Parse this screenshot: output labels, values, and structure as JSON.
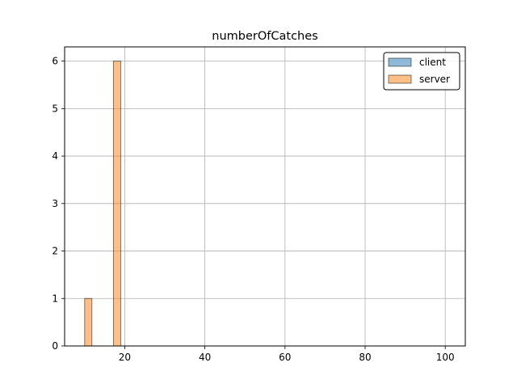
{
  "chart_data": {
    "type": "bar",
    "title": "numberOfCatches",
    "xlabel": "",
    "ylabel": "",
    "xlim": [
      5,
      105
    ],
    "ylim": [
      0,
      6.3
    ],
    "xticks": [
      20,
      40,
      60,
      80,
      100
    ],
    "yticks": [
      0,
      1,
      2,
      3,
      4,
      5,
      6
    ],
    "grid": true,
    "legend_position": "top-right",
    "bin_width": 1.8,
    "series": [
      {
        "name": "client",
        "color": "#1f77b4",
        "bins": []
      },
      {
        "name": "server",
        "color": "#ff7f0e",
        "bins": [
          {
            "x_start": 10.0,
            "x_end": 11.8,
            "count": 1
          },
          {
            "x_start": 17.2,
            "x_end": 19.0,
            "count": 6
          }
        ]
      }
    ]
  }
}
